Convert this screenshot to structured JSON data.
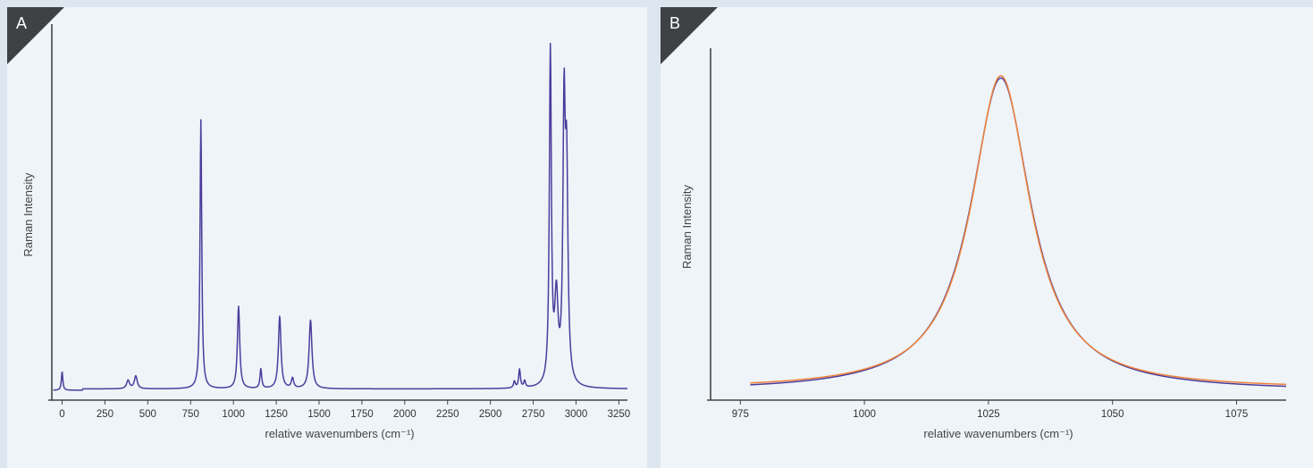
{
  "panels": {
    "a": {
      "label": "A"
    },
    "b": {
      "label": "B"
    }
  },
  "chart_data": [
    {
      "type": "line",
      "xlabel": "relative wavenumbers (cm⁻¹)",
      "ylabel": "Raman Intensity",
      "xlim": [
        -60,
        3300
      ],
      "ylim": [
        0,
        1.06
      ],
      "xticks": [
        0,
        250,
        500,
        750,
        1000,
        1250,
        1500,
        1750,
        2000,
        2250,
        2500,
        2750,
        3000,
        3250
      ],
      "yticks_shown": false,
      "series": [
        {
          "color": "#4b3c9c",
          "peaks": [
            {
              "center": 0,
              "height": 0.055,
              "width": 5
            },
            {
              "center": 385,
              "height": 0.025,
              "width": 10
            },
            {
              "center": 430,
              "height": 0.038,
              "width": 10
            },
            {
              "center": 810,
              "height": 0.8,
              "width": 6
            },
            {
              "center": 1030,
              "height": 0.245,
              "width": 8
            },
            {
              "center": 1160,
              "height": 0.058,
              "width": 6
            },
            {
              "center": 1270,
              "height": 0.215,
              "width": 9
            },
            {
              "center": 1345,
              "height": 0.03,
              "width": 8
            },
            {
              "center": 1450,
              "height": 0.205,
              "width": 10
            },
            {
              "center": 2640,
              "height": 0.02,
              "width": 6
            },
            {
              "center": 2670,
              "height": 0.055,
              "width": 6
            },
            {
              "center": 2700,
              "height": 0.02,
              "width": 6
            },
            {
              "center": 2850,
              "height": 1.0,
              "width": 7
            },
            {
              "center": 2885,
              "height": 0.25,
              "width": 12
            },
            {
              "center": 2930,
              "height": 0.77,
              "width": 8
            },
            {
              "center": 2945,
              "height": 0.6,
              "width": 9
            }
          ],
          "baseline": 0.008
        }
      ]
    },
    {
      "type": "line",
      "xlabel": "relative wavenumbers (cm⁻¹)",
      "ylabel": "Raman Intensity",
      "xlim": [
        969,
        1085
      ],
      "ylim": [
        0,
        1.06
      ],
      "xticks": [
        975,
        1000,
        1025,
        1050,
        1075
      ],
      "yticks_shown": false,
      "series": [
        {
          "color": "#4b3c9c",
          "center": 1027.5,
          "hwhm": 7.4,
          "height": 1.0,
          "baseline": 0.005
        },
        {
          "color": "#f0823a",
          "center": 1027.5,
          "hwhm": 7.2,
          "height": 1.0,
          "baseline": 0.012
        }
      ]
    }
  ]
}
